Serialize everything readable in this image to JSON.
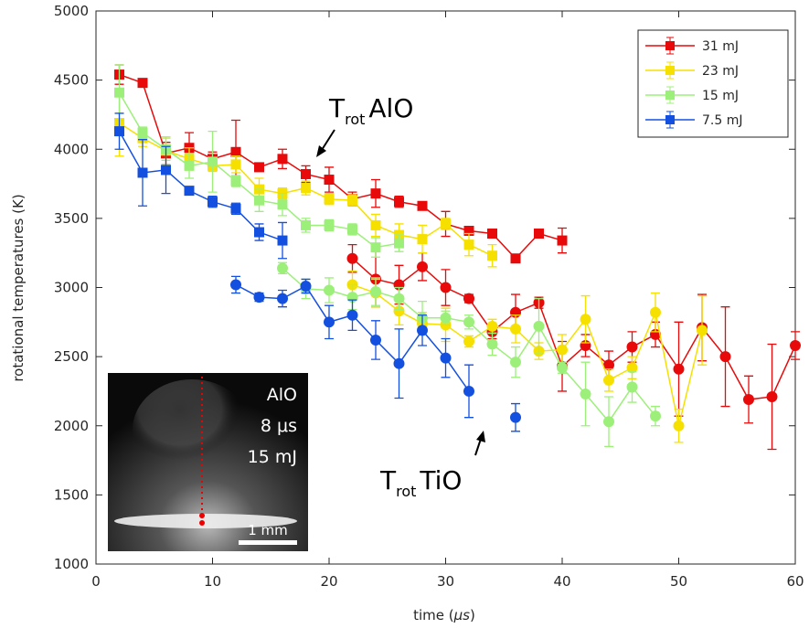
{
  "chart_data": {
    "type": "errorbar",
    "xlabel": {
      "before": "time (",
      "italic": "μs",
      "after": ")"
    },
    "ylabel": "rotational temperatures (K)",
    "xlim": [
      0,
      60
    ],
    "xticks": [
      0,
      10,
      20,
      30,
      40,
      50,
      60
    ],
    "ylim": [
      1000,
      5000
    ],
    "yticks": [
      1000,
      1500,
      2000,
      2500,
      3000,
      3500,
      4000,
      4500,
      5000
    ],
    "legend": "top-right",
    "series": [
      {
        "name": "31 mJ",
        "color": "#e80a0a",
        "squares": {
          "x": [
            2,
            4,
            6,
            8,
            10,
            12,
            14,
            16,
            18,
            20,
            22,
            24,
            26,
            28,
            30,
            32,
            34,
            36,
            38,
            40
          ],
          "values": [
            4540,
            4480,
            3970,
            4010,
            3930,
            3980,
            3870,
            3930,
            3820,
            3780,
            3640,
            3680,
            3620,
            3590,
            3460,
            3410,
            3390,
            3210,
            3390,
            3340
          ],
          "errors": [
            70,
            20,
            80,
            110,
            50,
            230,
            30,
            70,
            60,
            90,
            50,
            100,
            40,
            20,
            90,
            30,
            30,
            30,
            30,
            90
          ]
        },
        "circles": {
          "x": [
            22,
            24,
            26,
            28,
            30,
            32,
            34,
            36,
            38,
            40,
            42,
            44,
            46,
            48,
            50,
            52,
            54,
            56,
            58,
            60
          ],
          "values": [
            3210,
            3060,
            3020,
            3150,
            3000,
            2920,
            2680,
            2820,
            2890,
            2430,
            2580,
            2440,
            2570,
            2660,
            2410,
            2710,
            2500,
            2190,
            2210,
            2580
          ],
          "errors": [
            100,
            200,
            140,
            100,
            130,
            30,
            50,
            130,
            40,
            180,
            80,
            100,
            110,
            90,
            340,
            240,
            360,
            170,
            380,
            100
          ]
        }
      },
      {
        "name": "23 mJ",
        "color": "#f5e000",
        "squares": {
          "x": [
            2,
            4,
            6,
            8,
            10,
            12,
            14,
            16,
            18,
            20,
            22,
            24,
            26,
            28,
            30,
            32,
            34
          ],
          "values": [
            4190,
            4080,
            3990,
            3930,
            3880,
            3890,
            3710,
            3680,
            3720,
            3640,
            3630,
            3450,
            3380,
            3350,
            3460,
            3310,
            3230
          ],
          "errors": [
            240,
            60,
            100,
            80,
            40,
            60,
            80,
            40,
            50,
            40,
            40,
            80,
            80,
            100,
            40,
            80,
            80
          ]
        },
        "circles": {
          "x": [
            22,
            24,
            26,
            28,
            30,
            32,
            34,
            36,
            38,
            40,
            42,
            44,
            46,
            48,
            50,
            52
          ],
          "values": [
            3020,
            2960,
            2830,
            2740,
            2730,
            2610,
            2720,
            2700,
            2540,
            2550,
            2770,
            2330,
            2420,
            2820,
            2000,
            2690
          ],
          "errors": [
            100,
            100,
            100,
            80,
            120,
            40,
            50,
            100,
            60,
            110,
            170,
            80,
            80,
            140,
            120,
            250
          ]
        }
      },
      {
        "name": "15 mJ",
        "color": "#9cf07a",
        "squares": {
          "x": [
            2,
            4,
            6,
            8,
            10,
            12,
            14,
            16,
            18,
            20,
            22,
            24,
            26
          ],
          "values": [
            4410,
            4120,
            4000,
            3880,
            3910,
            3770,
            3630,
            3600,
            3450,
            3450,
            3420,
            3290,
            3320
          ],
          "errors": [
            200,
            40,
            80,
            90,
            220,
            40,
            80,
            80,
            50,
            40,
            40,
            70,
            60
          ]
        },
        "circles": {
          "x": [
            16,
            18,
            20,
            22,
            24,
            26,
            28,
            30,
            32,
            34,
            36,
            38,
            40,
            42,
            44,
            46,
            48
          ],
          "values": [
            3140,
            2990,
            2980,
            2930,
            2970,
            2920,
            2780,
            2780,
            2750,
            2590,
            2460,
            2720,
            2420,
            2230,
            2030,
            2280,
            2070
          ],
          "errors": [
            40,
            70,
            90,
            90,
            100,
            80,
            120,
            50,
            50,
            80,
            110,
            200,
            40,
            230,
            180,
            110,
            70
          ]
        }
      },
      {
        "name": "7.5 mJ",
        "color": "#1450e0",
        "squares": {
          "x": [
            2,
            4,
            6,
            8,
            10,
            12,
            14,
            16
          ],
          "values": [
            4130,
            3830,
            3850,
            3700,
            3620,
            3570,
            3400,
            3340
          ],
          "errors": [
            130,
            240,
            170,
            30,
            40,
            40,
            60,
            130
          ]
        },
        "circles": {
          "x": [
            12,
            14,
            16,
            18,
            20,
            22,
            24,
            26,
            28,
            30,
            32,
            34,
            36
          ],
          "values": [
            3020,
            2930,
            2920,
            3010,
            2750,
            2800,
            2620,
            2450,
            2690,
            2490,
            2250,
            null,
            2060
          ],
          "errors": [
            60,
            30,
            60,
            50,
            120,
            110,
            140,
            250,
            110,
            140,
            190,
            null,
            100
          ]
        }
      }
    ],
    "annotations": [
      {
        "main": "T",
        "sub": "rot",
        "label": "AlO"
      },
      {
        "main": "T",
        "sub": "rot",
        "label": "TiO"
      }
    ],
    "inset": {
      "lines": [
        "AlO",
        "8 μs",
        "15 mJ"
      ],
      "scale": "1 mm"
    }
  }
}
